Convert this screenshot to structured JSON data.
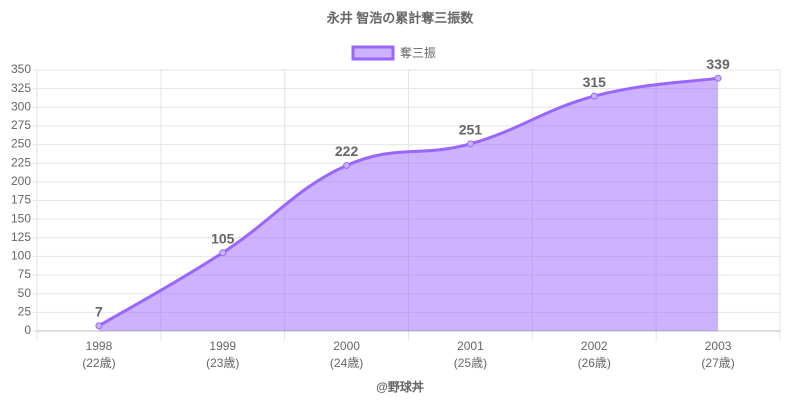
{
  "chart_data": {
    "type": "line",
    "title": "永井 智浩の累計奪三振数",
    "categories": [
      "1998",
      "1999",
      "2000",
      "2001",
      "2002",
      "2003"
    ],
    "category_sublabels": [
      "(22歳)",
      "(23歳)",
      "(24歳)",
      "(25歳)",
      "(26歳)",
      "(27歳)"
    ],
    "series": [
      {
        "name": "奪三振",
        "color": "#9966ff",
        "values": [
          7,
          105,
          222,
          251,
          315,
          339
        ]
      }
    ],
    "ylim": [
      0,
      350
    ],
    "yticks": [
      0,
      25,
      50,
      75,
      100,
      125,
      150,
      175,
      200,
      225,
      250,
      275,
      300,
      325,
      350
    ],
    "grid": true,
    "fill": true,
    "legend": "top",
    "footer": "@野球丼"
  }
}
